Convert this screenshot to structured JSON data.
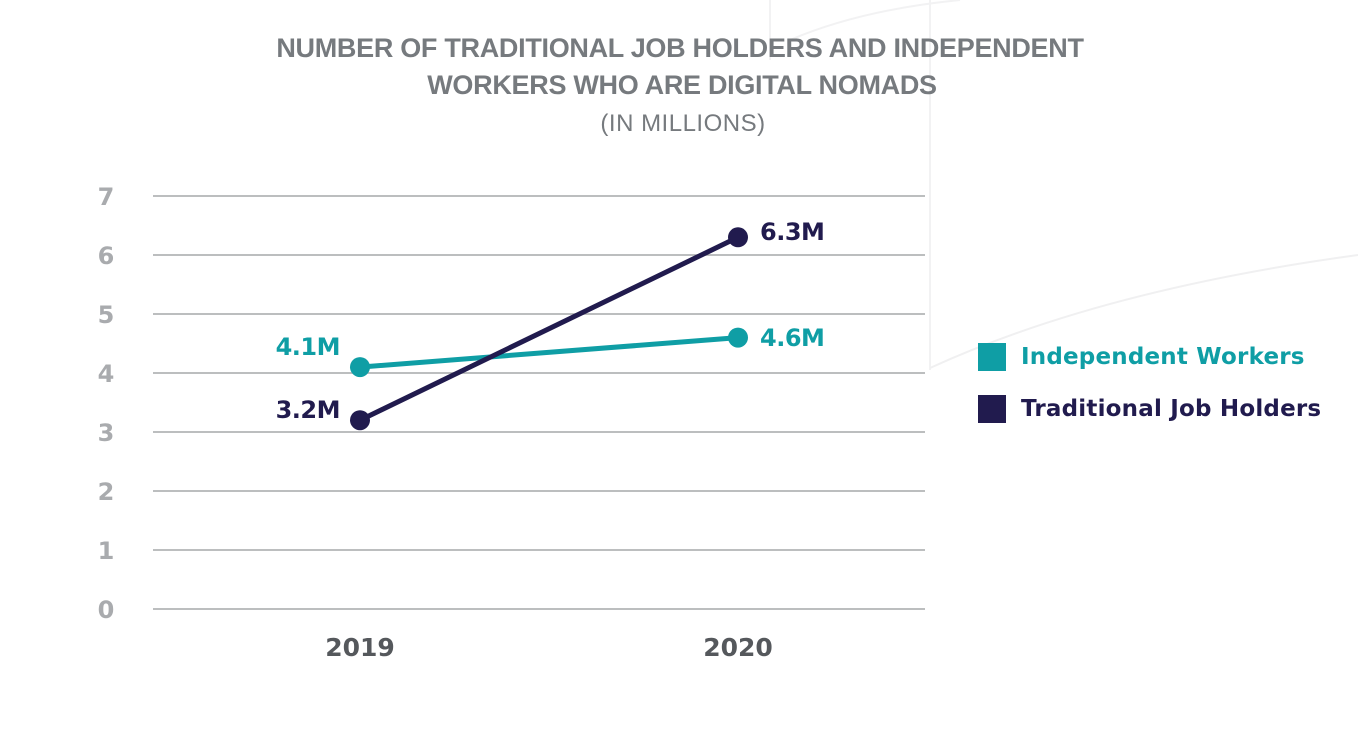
{
  "chart_data": {
    "type": "line",
    "title": "NUMBER OF TRADITIONAL JOB HOLDERS AND INDEPENDENT WORKERS WHO ARE DIGITAL NOMADS",
    "title_lines": [
      "NUMBER OF TRADITIONAL JOB HOLDERS AND INDEPENDENT",
      "WORKERS WHO ARE DIGITAL NOMADS"
    ],
    "subtitle": "(IN MILLIONS)",
    "xlabel": "",
    "ylabel": "",
    "categories": [
      "2019",
      "2020"
    ],
    "ylim": [
      0,
      7
    ],
    "yticks": [
      "0",
      "1",
      "2",
      "3",
      "4",
      "5",
      "6",
      "7"
    ],
    "grid": true,
    "legend_placement": "right",
    "series": [
      {
        "name": "Independent Workers",
        "color": "#0f9ea5",
        "values": [
          4.1,
          4.6
        ],
        "labels": [
          "4.1M",
          "4.6M"
        ]
      },
      {
        "name": "Traditional Job Holders",
        "color": "#211b4e",
        "values": [
          3.2,
          6.3
        ],
        "labels": [
          "3.2M",
          "6.3M"
        ]
      }
    ]
  },
  "colors": {
    "title": "#767a7e",
    "ytick": "#a9abae",
    "xtick": "#55585c",
    "grid": "#a6a8aa"
  }
}
